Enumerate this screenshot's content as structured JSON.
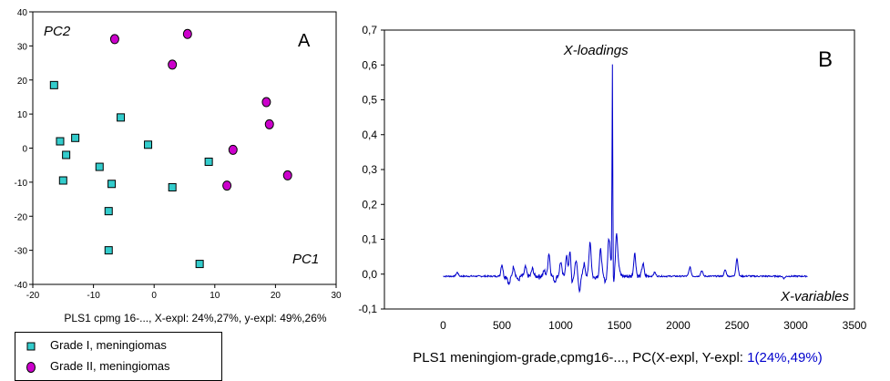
{
  "chart_data": [
    {
      "type": "scatter",
      "panel_label": "A",
      "axis_label_x": "PC1",
      "axis_label_y": "PC2",
      "caption": "PLS1 cpmg 16-..., X-expl: 24%,27%, y-expl: 49%,26%",
      "xlim": [
        -20,
        30
      ],
      "ylim": [
        -40,
        40
      ],
      "xticks": [
        -20,
        -10,
        0,
        10,
        20,
        30
      ],
      "yticks": [
        -40,
        -30,
        -20,
        -10,
        0,
        10,
        20,
        30,
        40
      ],
      "grid": false,
      "legend_position": "below",
      "series": [
        {
          "name": "Grade I, meningiomas",
          "marker": "square",
          "color": "#33cccc",
          "points": [
            [
              -16.5,
              18.5
            ],
            [
              -15.5,
              2
            ],
            [
              -13,
              3
            ],
            [
              -14.5,
              -2
            ],
            [
              -15,
              -9.5
            ],
            [
              -9,
              -5.5
            ],
            [
              -7,
              -10.5
            ],
            [
              -5.5,
              9
            ],
            [
              -1,
              1
            ],
            [
              -7.5,
              -18.5
            ],
            [
              -7.5,
              -30
            ],
            [
              3,
              -11.5
            ],
            [
              9,
              -4
            ],
            [
              7.5,
              -34
            ]
          ]
        },
        {
          "name": "Grade II, meningiomas",
          "marker": "circle",
          "color": "#cc00cc",
          "points": [
            [
              -6.5,
              32
            ],
            [
              5.5,
              33.5
            ],
            [
              3,
              24.5
            ],
            [
              18.5,
              13.5
            ],
            [
              19,
              7
            ],
            [
              13,
              -0.5
            ],
            [
              12,
              -11
            ],
            [
              22,
              -8
            ]
          ]
        }
      ]
    },
    {
      "type": "line",
      "panel_label": "B",
      "series_label": "X-loadings",
      "axis_label_x": "X-variables",
      "caption_prefix": "PLS1 meningiom-grade,cpmg16-..., PC(X-expl, Y-expl: ",
      "caption_highlight": "1(24%,49%)",
      "caption_suffix": "",
      "xlim": [
        -500,
        3500
      ],
      "ylim": [
        -0.1,
        0.7
      ],
      "xticks": [
        0,
        500,
        1000,
        1500,
        2000,
        2500,
        3000,
        3500
      ],
      "ytick_labels": [
        "0,7",
        "0,6",
        "0,5",
        "0,4",
        "0,3",
        "0,2",
        "0,1",
        "0,0",
        "-0,1"
      ],
      "yticks": [
        0.7,
        0.6,
        0.5,
        0.4,
        0.3,
        0.2,
        0.1,
        0.0,
        -0.1
      ],
      "grid": false,
      "color": "#0000cc",
      "x_range": [
        0,
        3100
      ],
      "features": [
        {
          "x": 120,
          "y": 0.005
        },
        {
          "x": 500,
          "y": 0.03
        },
        {
          "x": 515,
          "y": -0.01
        },
        {
          "x": 560,
          "y": -0.03
        },
        {
          "x": 600,
          "y": 0.022
        },
        {
          "x": 640,
          "y": -0.018
        },
        {
          "x": 700,
          "y": 0.02
        },
        {
          "x": 760,
          "y": 0.015
        },
        {
          "x": 860,
          "y": 0.01
        },
        {
          "x": 900,
          "y": 0.06
        },
        {
          "x": 950,
          "y": -0.02
        },
        {
          "x": 1000,
          "y": 0.035
        },
        {
          "x": 1050,
          "y": 0.05
        },
        {
          "x": 1080,
          "y": 0.068
        },
        {
          "x": 1095,
          "y": -0.035
        },
        {
          "x": 1130,
          "y": 0.04
        },
        {
          "x": 1160,
          "y": -0.045
        },
        {
          "x": 1200,
          "y": 0.03
        },
        {
          "x": 1250,
          "y": 0.095
        },
        {
          "x": 1285,
          "y": -0.01
        },
        {
          "x": 1340,
          "y": 0.07
        },
        {
          "x": 1380,
          "y": -0.02
        },
        {
          "x": 1410,
          "y": 0.1
        },
        {
          "x": 1430,
          "y": 0.03
        },
        {
          "x": 1440,
          "y": 0.6
        },
        {
          "x": 1450,
          "y": -0.03
        },
        {
          "x": 1475,
          "y": 0.12
        },
        {
          "x": 1495,
          "y": 0.02
        },
        {
          "x": 1630,
          "y": 0.06
        },
        {
          "x": 1700,
          "y": 0.03
        },
        {
          "x": 1800,
          "y": 0.005
        },
        {
          "x": 2100,
          "y": 0.02
        },
        {
          "x": 2200,
          "y": 0.01
        },
        {
          "x": 2400,
          "y": 0.012
        },
        {
          "x": 2500,
          "y": 0.045
        },
        {
          "x": 2600,
          "y": -0.005
        },
        {
          "x": 2900,
          "y": -0.012
        }
      ]
    }
  ]
}
